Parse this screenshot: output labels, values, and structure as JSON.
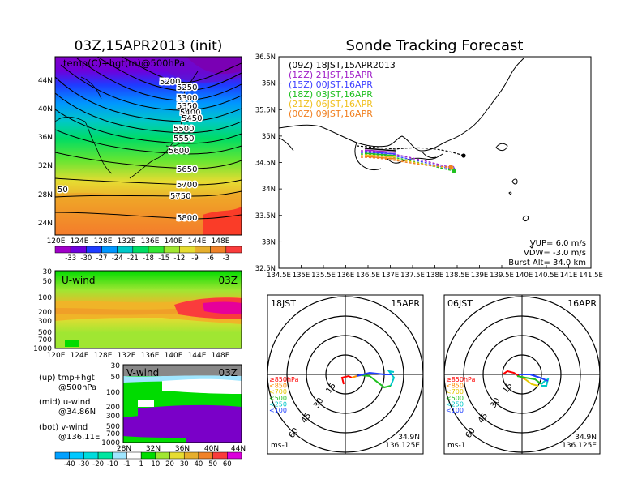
{
  "left_title": "03Z,15APR2013 (init)",
  "right_title": "Sonde Tracking Forecast",
  "top_map": {
    "field_label": "temp(C)+hgt(m)@500hPa",
    "lat_labels": [
      "44N",
      "40N",
      "36N",
      "32N",
      "28N",
      "24N"
    ],
    "lon_labels": [
      "120E",
      "124E",
      "128E",
      "132E",
      "136E",
      "140E",
      "144E",
      "148E"
    ],
    "contour_labels": [
      "5200",
      "5250",
      "5300",
      "5350",
      "5400",
      "5450",
      "5500",
      "5550",
      "5600",
      "5650",
      "5700",
      "5750",
      "5800",
      "50"
    ],
    "temp_colorbar": {
      "labels": [
        "-33",
        "-30",
        "-27",
        "-24",
        "-21",
        "-18",
        "-15",
        "-12",
        "-9",
        "-6",
        "-3"
      ],
      "colors": [
        "#a000c8",
        "#6e00dc",
        "#1e3cff",
        "#0096ff",
        "#00c8c8",
        "#00dc64",
        "#32e632",
        "#a0e632",
        "#e6dc32",
        "#e6af2d",
        "#f08228",
        "#fa3c3c"
      ]
    }
  },
  "uwind": {
    "label": "U-wind",
    "time": "03Z",
    "p_labels": [
      "30",
      "50",
      "100",
      "200",
      "300",
      "500",
      "700",
      "1000"
    ],
    "lon_labels": [
      "120E",
      "124E",
      "128E",
      "132E",
      "136E",
      "140E",
      "144E",
      "148E"
    ]
  },
  "vwind": {
    "label": "V-wind",
    "time": "03Z",
    "p_labels": [
      "30",
      "50",
      "100",
      "200",
      "300",
      "500",
      "700",
      "1000"
    ],
    "lat_labels": [
      "28N",
      "32N",
      "36N",
      "40N",
      "44N"
    ],
    "wind_colorbar": {
      "labels": [
        "-40",
        "-30",
        "-20",
        "-10",
        "-1",
        "1",
        "10",
        "20",
        "30",
        "40",
        "50",
        "60"
      ],
      "colors": [
        "#00a0ff",
        "#00c8ff",
        "#00dcdc",
        "#00e6a0",
        "#a0e6ff",
        "#ffffff",
        "#00dc00",
        "#a0e632",
        "#e6dc32",
        "#e6af2d",
        "#f08228",
        "#fa3c3c",
        "#dc00dc"
      ]
    }
  },
  "legend_text": {
    "up": "(up)  tmp+hgt",
    "up2": "@500hPa",
    "mid": "(mid)  u-wind",
    "mid2": "@34.86N",
    "bot": "(bot)  v-wind",
    "bot2": "@136.11E"
  },
  "track_map": {
    "lat_labels": [
      "36.5N",
      "36N",
      "35.5N",
      "35N",
      "34.5N",
      "34N",
      "33.5N",
      "33N",
      "32.5N"
    ],
    "lon_labels": [
      "134.5E",
      "135E",
      "135.5E",
      "136E",
      "136.5E",
      "137E",
      "137.5E",
      "138E",
      "138.5E",
      "139E",
      "139.5E",
      "140E",
      "140.5E",
      "141E",
      "141.5E"
    ],
    "runs": [
      {
        "label": "(09Z)  18JST,15APR2013",
        "color": "#000000"
      },
      {
        "label": "(12Z)  21JST,15APR",
        "color": "#a020c8"
      },
      {
        "label": "(15Z)  00JST,16APR",
        "color": "#4040ff"
      },
      {
        "label": "(18Z)  03JST,16APR",
        "color": "#20c020"
      },
      {
        "label": "(21Z)  06JST,16APR",
        "color": "#f0c020"
      },
      {
        "label": "(00Z)  09JST,16APR",
        "color": "#f08020"
      }
    ],
    "params": [
      "VUP=  6.0  m/s",
      "VDW= -3.0  m/s",
      "Burst Alt=  34.0  km"
    ]
  },
  "hodo_left": {
    "time": "18JST",
    "date": "15APR",
    "ring_labels": [
      "15",
      "30",
      "45",
      "60"
    ],
    "levels": [
      {
        "label": "≥850hPa",
        "color": "#ff0000"
      },
      {
        "label": "<850",
        "color": "#ff8c00"
      },
      {
        "label": "<700",
        "color": "#e6c800"
      },
      {
        "label": "<500",
        "color": "#20c020"
      },
      {
        "label": "<250",
        "color": "#00c8c8"
      },
      {
        "label": "<100",
        "color": "#2040ff"
      }
    ],
    "unit": "ms-1",
    "loc1": "34.9N",
    "loc2": "136.125E"
  },
  "hodo_right": {
    "time": "06JST",
    "date": "16APR",
    "ring_labels": [
      "15",
      "30",
      "45",
      "60"
    ],
    "levels": [
      {
        "label": "≥850hPa",
        "color": "#ff0000"
      },
      {
        "label": "<850",
        "color": "#ff8c00"
      },
      {
        "label": "<700",
        "color": "#e6c800"
      },
      {
        "label": "<500",
        "color": "#20c020"
      },
      {
        "label": "<250",
        "color": "#00c8c8"
      },
      {
        "label": "<100",
        "color": "#2040ff"
      }
    ],
    "unit": "ms-1",
    "loc1": "34.9N",
    "loc2": "136.125E"
  }
}
